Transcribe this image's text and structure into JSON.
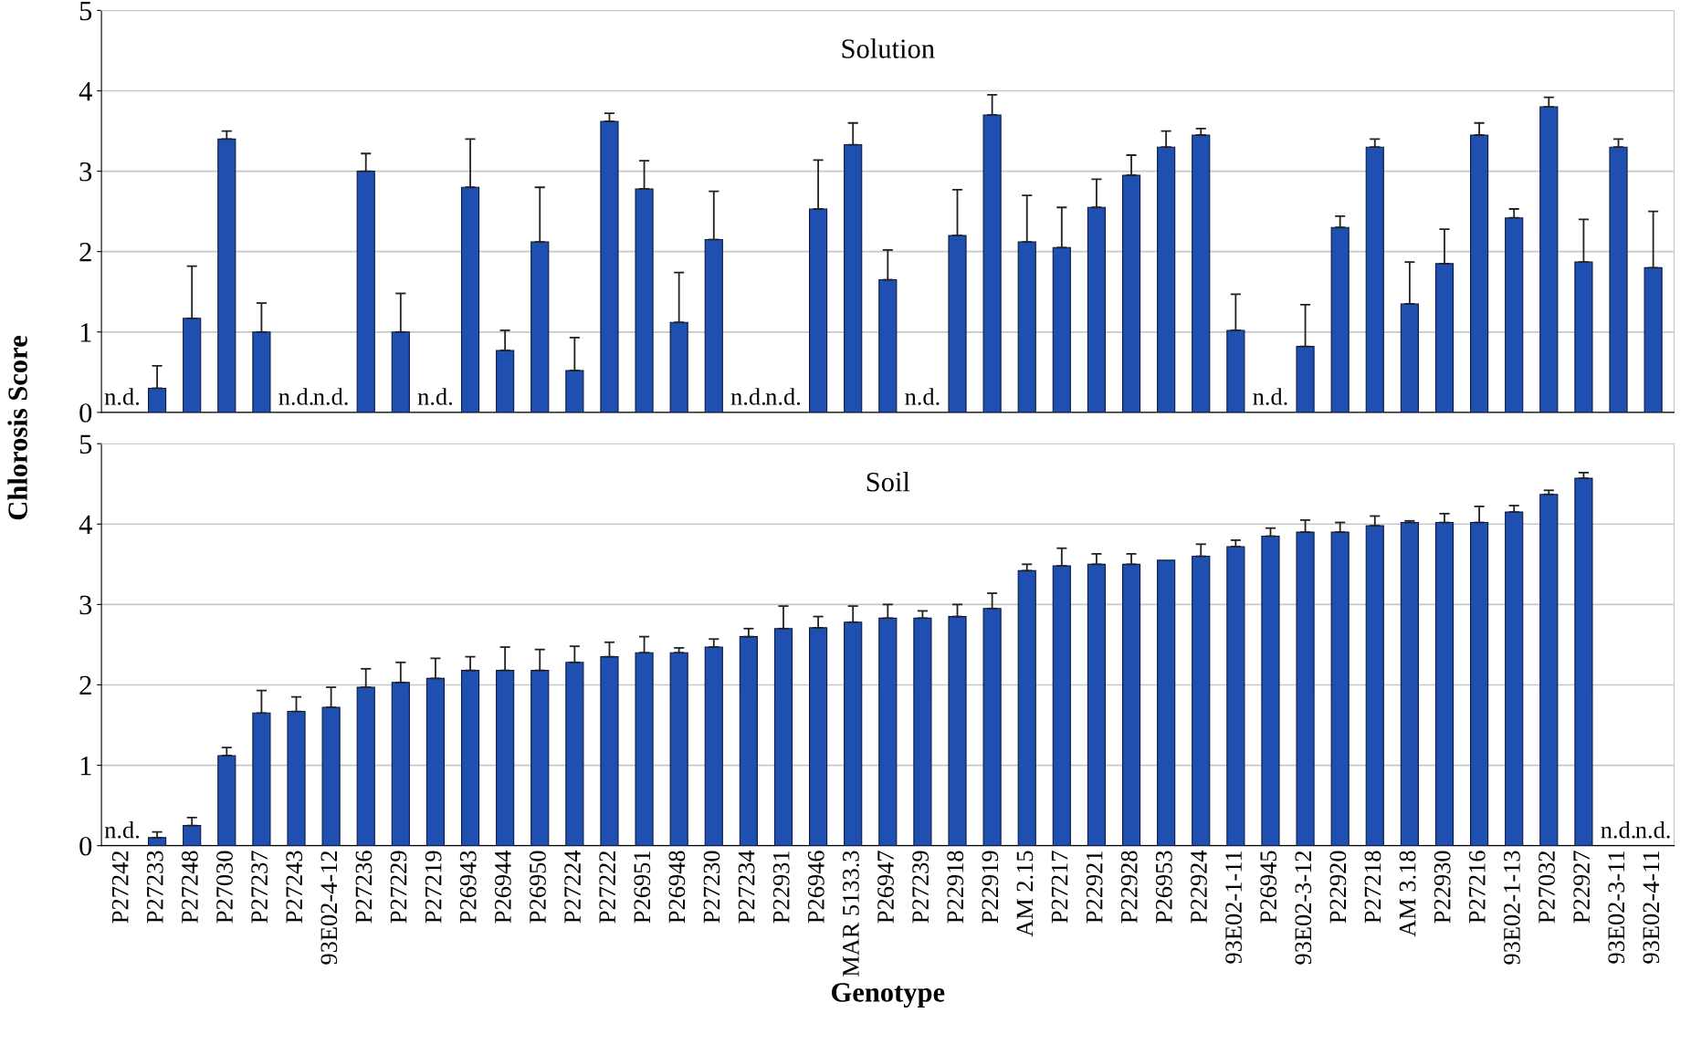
{
  "chart_data": [
    {
      "type": "bar",
      "title": "Solution",
      "ylabel": "Chlorosis Score",
      "tick_labels": "y",
      "grid": "y",
      "color": "#1f4fb0",
      "categories": [
        null,
        null,
        null,
        null,
        null,
        null,
        null,
        null,
        null,
        null,
        null,
        null,
        null,
        null,
        null,
        null,
        null,
        null,
        null,
        null,
        null,
        null,
        null,
        null,
        null,
        null,
        null,
        null,
        null,
        null,
        null,
        null,
        null,
        null,
        null,
        null,
        null,
        null,
        null,
        null,
        null,
        null,
        null,
        null,
        null
      ],
      "values": [
        null,
        0.3,
        1.17,
        3.4,
        1.0,
        null,
        null,
        3.0,
        1.0,
        null,
        2.8,
        0.77,
        2.12,
        0.52,
        3.62,
        2.78,
        1.12,
        2.15,
        null,
        null,
        2.53,
        3.33,
        1.65,
        null,
        2.2,
        3.7,
        2.12,
        2.05,
        2.55,
        2.95,
        3.3,
        3.45,
        1.02,
        null,
        0.82,
        2.3,
        3.3,
        1.35,
        1.85,
        3.45,
        2.42,
        3.8,
        1.87,
        3.3,
        1.8
      ],
      "errors": [
        null,
        [
          0.3,
          0.58
        ],
        [
          1.17,
          1.82
        ],
        [
          3.4,
          3.5
        ],
        [
          1.0,
          1.36
        ],
        null,
        null,
        [
          3.0,
          3.22
        ],
        [
          1.0,
          1.48
        ],
        null,
        [
          2.8,
          3.4
        ],
        [
          0.77,
          1.02
        ],
        [
          2.12,
          2.8
        ],
        [
          0.52,
          0.93
        ],
        [
          3.62,
          3.72
        ],
        [
          2.78,
          3.13
        ],
        [
          1.12,
          1.74
        ],
        [
          2.15,
          2.75
        ],
        null,
        null,
        [
          2.53,
          3.14
        ],
        [
          3.33,
          3.6
        ],
        [
          1.65,
          2.02
        ],
        null,
        [
          2.2,
          2.77
        ],
        [
          3.7,
          3.95
        ],
        [
          2.12,
          2.7
        ],
        [
          2.05,
          2.55
        ],
        [
          2.55,
          2.9
        ],
        [
          2.95,
          3.2
        ],
        [
          3.3,
          3.5
        ],
        [
          3.45,
          3.53
        ],
        [
          1.02,
          1.47
        ],
        null,
        [
          0.82,
          1.34
        ],
        [
          2.3,
          2.44
        ],
        [
          3.3,
          3.4
        ],
        [
          1.35,
          1.87
        ],
        [
          1.85,
          2.28
        ],
        [
          3.45,
          3.6
        ],
        [
          2.42,
          2.53
        ],
        [
          3.8,
          3.92
        ],
        [
          1.87,
          2.4
        ],
        [
          3.3,
          3.4
        ],
        [
          1.8,
          2.5
        ]
      ],
      "ylim": [
        0,
        5
      ],
      "yticks": [
        0,
        1,
        2,
        3,
        4,
        5
      ],
      "annotations": [
        "n.d.",
        "n.d.",
        "n.d.",
        "n.d.",
        "n.d.",
        "n.d.",
        "n.d.",
        "n.d."
      ]
    },
    {
      "type": "bar",
      "title": "Soil",
      "xlabel": "Genotype",
      "grid": "y",
      "color": "#1f4fb0",
      "categories": [
        "P27242",
        "P27233",
        "P27248",
        "P27030",
        "P27237",
        "P27243",
        "93E02-4-12",
        "P27236",
        "P27229",
        "P27219",
        "P26943",
        "P26944",
        "P26950",
        "P27224",
        "P27222",
        "P26951",
        "P26948",
        "P27230",
        "P27234",
        "P22931",
        "P26946",
        "MAR 5133.3",
        "P26947",
        "P27239",
        "P22918",
        "P22919",
        "AM 2.15",
        "P27217",
        "P22921",
        "P22928",
        "P26953",
        "P22924",
        "93E02-1-11",
        "P26945",
        "93E02-3-12",
        "P22920",
        "P27218",
        "AM 3.18",
        "P22930",
        "P27216",
        "93E02-1-13",
        "P27032",
        "P22927",
        "93E02-3-11",
        "93E02-4-11"
      ],
      "values": [
        null,
        0.1,
        0.25,
        1.12,
        1.65,
        1.67,
        1.72,
        1.97,
        2.03,
        2.08,
        2.18,
        2.18,
        2.18,
        2.28,
        2.35,
        2.4,
        2.4,
        2.47,
        2.6,
        2.7,
        2.71,
        2.78,
        2.83,
        2.83,
        2.85,
        2.95,
        3.42,
        3.48,
        3.5,
        3.5,
        3.55,
        3.6,
        3.72,
        3.85,
        3.9,
        3.9,
        3.98,
        4.02,
        4.02,
        4.02,
        4.15,
        4.37,
        4.57,
        null,
        null
      ],
      "errors": [
        null,
        [
          0.1,
          0.17
        ],
        [
          0.25,
          0.35
        ],
        [
          1.12,
          1.22
        ],
        [
          1.65,
          1.93
        ],
        [
          1.67,
          1.85
        ],
        [
          1.72,
          1.97
        ],
        [
          1.97,
          2.2
        ],
        [
          2.03,
          2.28
        ],
        [
          2.08,
          2.33
        ],
        [
          2.18,
          2.35
        ],
        [
          2.18,
          2.47
        ],
        [
          2.18,
          2.44
        ],
        [
          2.28,
          2.48
        ],
        [
          2.35,
          2.53
        ],
        [
          2.4,
          2.6
        ],
        [
          2.4,
          2.46
        ],
        [
          2.47,
          2.57
        ],
        [
          2.6,
          2.7
        ],
        [
          2.7,
          2.98
        ],
        [
          2.71,
          2.85
        ],
        [
          2.78,
          2.98
        ],
        [
          2.83,
          3.0
        ],
        [
          2.83,
          2.92
        ],
        [
          2.85,
          3.0
        ],
        [
          2.95,
          3.14
        ],
        [
          3.42,
          3.5
        ],
        [
          3.48,
          3.7
        ],
        [
          3.5,
          3.63
        ],
        [
          3.5,
          3.63
        ],
        null,
        [
          3.6,
          3.75
        ],
        [
          3.72,
          3.8
        ],
        [
          3.85,
          3.95
        ],
        [
          3.9,
          4.05
        ],
        [
          3.9,
          4.02
        ],
        [
          3.98,
          4.1
        ],
        [
          4.02,
          4.04
        ],
        [
          4.02,
          4.13
        ],
        [
          4.02,
          4.22
        ],
        [
          4.15,
          4.23
        ],
        [
          4.37,
          4.42
        ],
        [
          4.57,
          4.64
        ],
        null,
        null
      ],
      "ylim": [
        0,
        5
      ],
      "yticks": [
        0,
        1,
        2,
        3,
        4,
        5
      ],
      "annotations": [
        "n.d.",
        "n.d.",
        "n.d."
      ]
    }
  ]
}
